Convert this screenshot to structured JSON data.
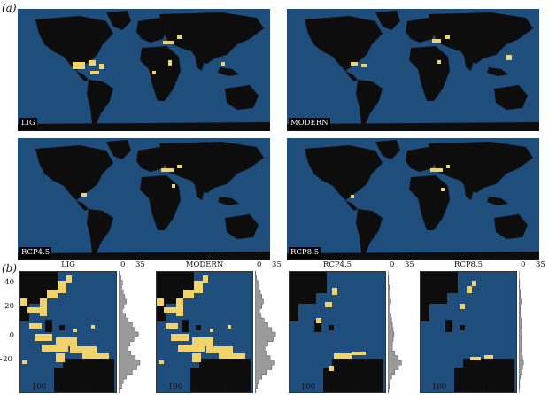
{
  "panel_a": {
    "letter": "(a)",
    "maps": [
      {
        "label": "LIG"
      },
      {
        "label": "MODERN"
      },
      {
        "label": "RCP4.5"
      },
      {
        "label": "RCP8.5"
      }
    ]
  },
  "panel_b": {
    "letter": "(b)",
    "subplots": [
      {
        "title": "LIG",
        "hist": [
          2,
          3,
          5,
          4,
          6,
          8,
          10,
          7,
          5,
          9,
          12,
          18,
          22,
          26,
          20,
          15,
          12,
          16,
          22,
          28,
          24,
          18,
          10,
          6,
          4,
          2
        ]
      },
      {
        "title": "MODERN",
        "hist": [
          1,
          2,
          4,
          5,
          7,
          9,
          11,
          9,
          6,
          8,
          12,
          17,
          22,
          27,
          24,
          17,
          13,
          15,
          20,
          26,
          22,
          15,
          9,
          5,
          3,
          1
        ]
      },
      {
        "title": "RCP4.5",
        "hist": [
          0,
          1,
          1,
          2,
          3,
          3,
          4,
          3,
          3,
          4,
          5,
          6,
          7,
          8,
          7,
          6,
          6,
          9,
          13,
          18,
          14,
          9,
          5,
          3,
          2,
          1
        ]
      },
      {
        "title": "RCP8.5",
        "hist": [
          0,
          0,
          1,
          1,
          2,
          2,
          3,
          2,
          2,
          2,
          3,
          3,
          4,
          4,
          3,
          3,
          3,
          4,
          5,
          6,
          5,
          4,
          2,
          1,
          1,
          0
        ]
      }
    ],
    "hist_axis": {
      "min": "0",
      "max": "35"
    },
    "y_ticks": [
      "40",
      "20",
      "0",
      "−20"
    ],
    "x_ticks": [
      "100",
      "120",
      "140"
    ]
  },
  "colors": {
    "ocean": "#1f4e7d",
    "land": "#0d0d0d",
    "habitat": "#f2d36b",
    "grey_habitat": "#8c8c8c"
  }
}
